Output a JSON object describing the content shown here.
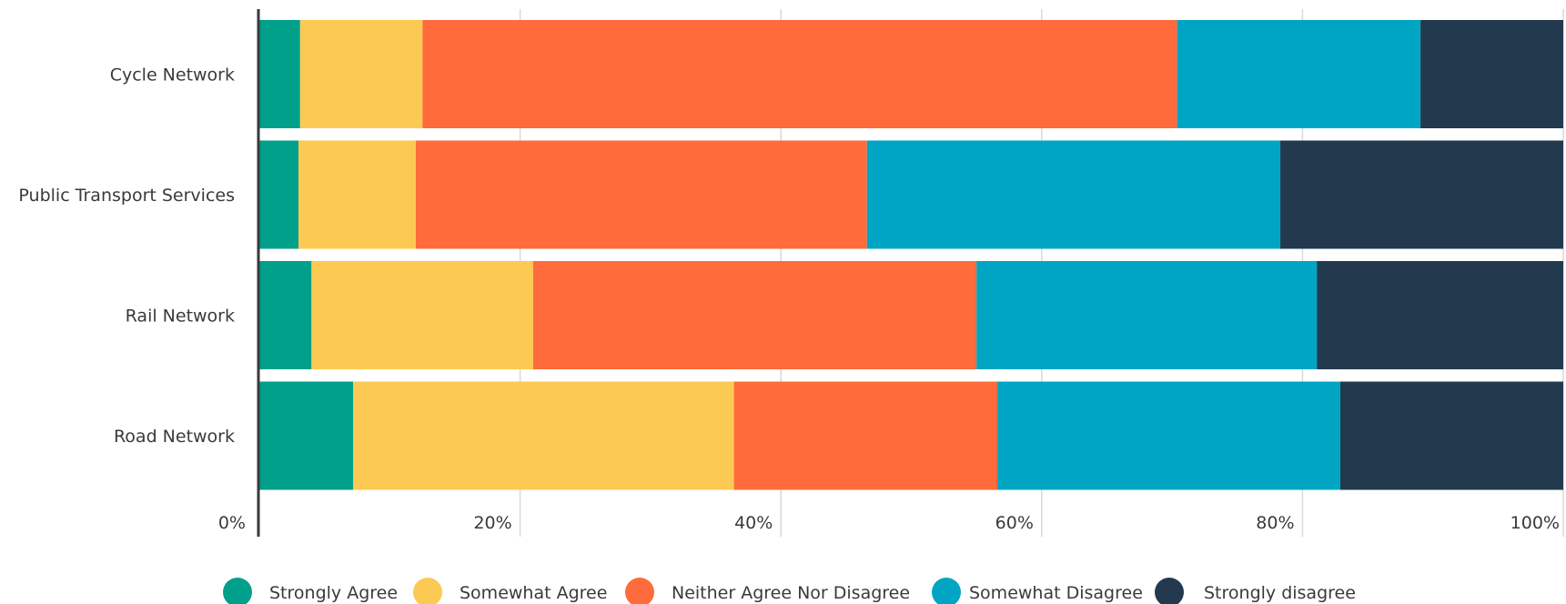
{
  "chart_data": {
    "type": "bar",
    "orientation": "horizontal",
    "stacked": true,
    "normalized_100_percent": true,
    "title": "",
    "xlabel": "",
    "ylabel": "",
    "categories": [
      "Cycle Network",
      "Public Transport Services ",
      "Rail Network",
      "Road Network"
    ],
    "series": [
      {
        "name": "Strongly Agree",
        "color": "#00a08a",
        "values": [
          3,
          3,
          4,
          7.2
        ]
      },
      {
        "name": "Somewhat Agree",
        "color": "#fcca52",
        "values": [
          9,
          9,
          17,
          29.2
        ]
      },
      {
        "name": "Neither Agree Nor Disagree",
        "color": "#ff6b3a",
        "values": [
          55.5,
          34.6,
          34,
          20.2
        ]
      },
      {
        "name": "Somewhat Disagree",
        "color": "#00a5c4",
        "values": [
          17.9,
          31.7,
          26.1,
          26.3
        ]
      },
      {
        "name": "Strongly disagree",
        "color": "#22394e",
        "values": [
          10.5,
          21.7,
          18.9,
          17.1
        ]
      }
    ],
    "xlim": [
      0,
      100
    ],
    "xticks": [
      "0%",
      "20%",
      "40%",
      "60%",
      "80%",
      "100%"
    ],
    "grid": "vertical",
    "legend": "bottom"
  }
}
